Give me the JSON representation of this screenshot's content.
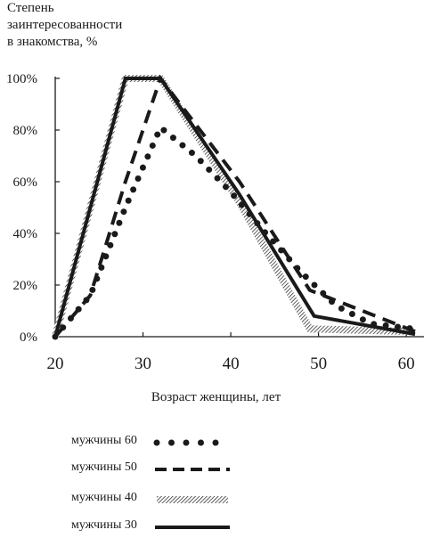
{
  "chart_data": {
    "type": "line",
    "ylabel": "Степень\nзаинтересованности\nв знакомства, %",
    "xlabel": "Возраст женщины, лет",
    "xlim": [
      20,
      61
    ],
    "ylim": [
      0,
      100
    ],
    "xticks": [
      "20",
      "30",
      "40",
      "50",
      "60"
    ],
    "yticks": [
      "0%",
      "20%",
      "40%",
      "60%",
      "80%",
      "100%"
    ],
    "grid": false,
    "legend_position": "bottom",
    "series": [
      {
        "name": "мужчины 60",
        "style": "dotted",
        "x": [
          20,
          24,
          28,
          32,
          36,
          40,
          44,
          48,
          52,
          56,
          61
        ],
        "y": [
          0,
          16,
          50,
          81,
          70,
          56,
          40,
          25,
          12,
          5,
          3
        ]
      },
      {
        "name": "мужчины 50",
        "style": "dashed",
        "x": [
          20,
          24,
          28,
          32,
          41,
          49,
          61
        ],
        "y": [
          0,
          16,
          60,
          100,
          60,
          18,
          2
        ]
      },
      {
        "name": "мужчины 40",
        "style": "hatched",
        "x": [
          20,
          28,
          32,
          41,
          49,
          61
        ],
        "y": [
          0,
          100,
          100,
          52,
          3,
          2
        ]
      },
      {
        "name": "мужчины 30",
        "style": "solid",
        "x": [
          20,
          28,
          32,
          41,
          49.5,
          61
        ],
        "y": [
          0,
          100,
          100,
          55,
          8,
          1
        ]
      }
    ]
  }
}
